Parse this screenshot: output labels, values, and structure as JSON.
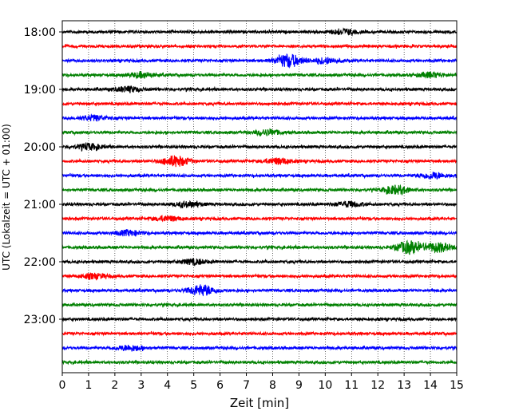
{
  "chart_data": {
    "type": "line",
    "title": "",
    "xlabel": "Zeit  [min]",
    "ylabel": "UTC (Lokalzeit = UTC + 01:00)",
    "xlim": [
      0,
      15
    ],
    "x_ticks": [
      "0",
      "1",
      "2",
      "3",
      "4",
      "5",
      "6",
      "7",
      "8",
      "9",
      "10",
      "11",
      "12",
      "13",
      "14",
      "15"
    ],
    "y_tick_labels": [
      "18:00",
      "19:00",
      "20:00",
      "21:00",
      "22:00",
      "23:00"
    ],
    "grid": "vertical dotted at each minute",
    "trace_interval_minutes": 15,
    "trace_colors": [
      "#000000",
      "#ff0000",
      "#0000ff",
      "#008000"
    ],
    "traces": [
      {
        "start": "18:00",
        "color": "#000000",
        "events": [
          {
            "minute": 10.7,
            "amp": 1.3
          }
        ]
      },
      {
        "start": "18:15",
        "color": "#ff0000",
        "events": []
      },
      {
        "start": "18:30",
        "color": "#0000ff",
        "events": [
          {
            "minute": 8.6,
            "amp": 3.2
          },
          {
            "minute": 10.0,
            "amp": 1.4
          }
        ]
      },
      {
        "start": "18:45",
        "color": "#008000",
        "events": [
          {
            "minute": 3.0,
            "amp": 1.2
          },
          {
            "minute": 14.0,
            "amp": 1.2
          }
        ]
      },
      {
        "start": "19:00",
        "color": "#000000",
        "events": [
          {
            "minute": 2.5,
            "amp": 1.3
          }
        ]
      },
      {
        "start": "19:15",
        "color": "#ff0000",
        "events": []
      },
      {
        "start": "19:30",
        "color": "#0000ff",
        "events": [
          {
            "minute": 1.2,
            "amp": 1.2
          }
        ]
      },
      {
        "start": "19:45",
        "color": "#008000",
        "events": [
          {
            "minute": 7.8,
            "amp": 1.3
          }
        ]
      },
      {
        "start": "20:00",
        "color": "#000000",
        "events": [
          {
            "minute": 1.0,
            "amp": 1.4
          }
        ]
      },
      {
        "start": "20:15",
        "color": "#ff0000",
        "events": [
          {
            "minute": 4.3,
            "amp": 2.6
          },
          {
            "minute": 8.2,
            "amp": 1.4
          }
        ]
      },
      {
        "start": "20:30",
        "color": "#0000ff",
        "events": [
          {
            "minute": 14.1,
            "amp": 1.5
          }
        ]
      },
      {
        "start": "20:45",
        "color": "#008000",
        "events": [
          {
            "minute": 12.7,
            "amp": 2.0
          }
        ]
      },
      {
        "start": "21:00",
        "color": "#000000",
        "events": [
          {
            "minute": 4.8,
            "amp": 1.3
          },
          {
            "minute": 10.9,
            "amp": 1.2
          }
        ]
      },
      {
        "start": "21:15",
        "color": "#ff0000",
        "events": [
          {
            "minute": 4.0,
            "amp": 1.2
          }
        ]
      },
      {
        "start": "21:30",
        "color": "#0000ff",
        "events": [
          {
            "minute": 2.5,
            "amp": 1.2
          }
        ]
      },
      {
        "start": "21:45",
        "color": "#008000",
        "events": [
          {
            "minute": 13.2,
            "amp": 3.0
          },
          {
            "minute": 14.3,
            "amp": 2.2
          }
        ]
      },
      {
        "start": "22:00",
        "color": "#000000",
        "events": [
          {
            "minute": 5.0,
            "amp": 1.2
          }
        ]
      },
      {
        "start": "22:15",
        "color": "#ff0000",
        "events": [
          {
            "minute": 1.2,
            "amp": 1.2
          }
        ]
      },
      {
        "start": "22:30",
        "color": "#0000ff",
        "events": [
          {
            "minute": 5.3,
            "amp": 2.6
          }
        ]
      },
      {
        "start": "22:45",
        "color": "#008000",
        "events": []
      },
      {
        "start": "23:00",
        "color": "#000000",
        "events": []
      },
      {
        "start": "23:15",
        "color": "#ff0000",
        "events": []
      },
      {
        "start": "23:30",
        "color": "#0000ff",
        "events": [
          {
            "minute": 2.6,
            "amp": 1.3
          }
        ]
      },
      {
        "start": "23:45",
        "color": "#008000",
        "events": []
      }
    ]
  }
}
